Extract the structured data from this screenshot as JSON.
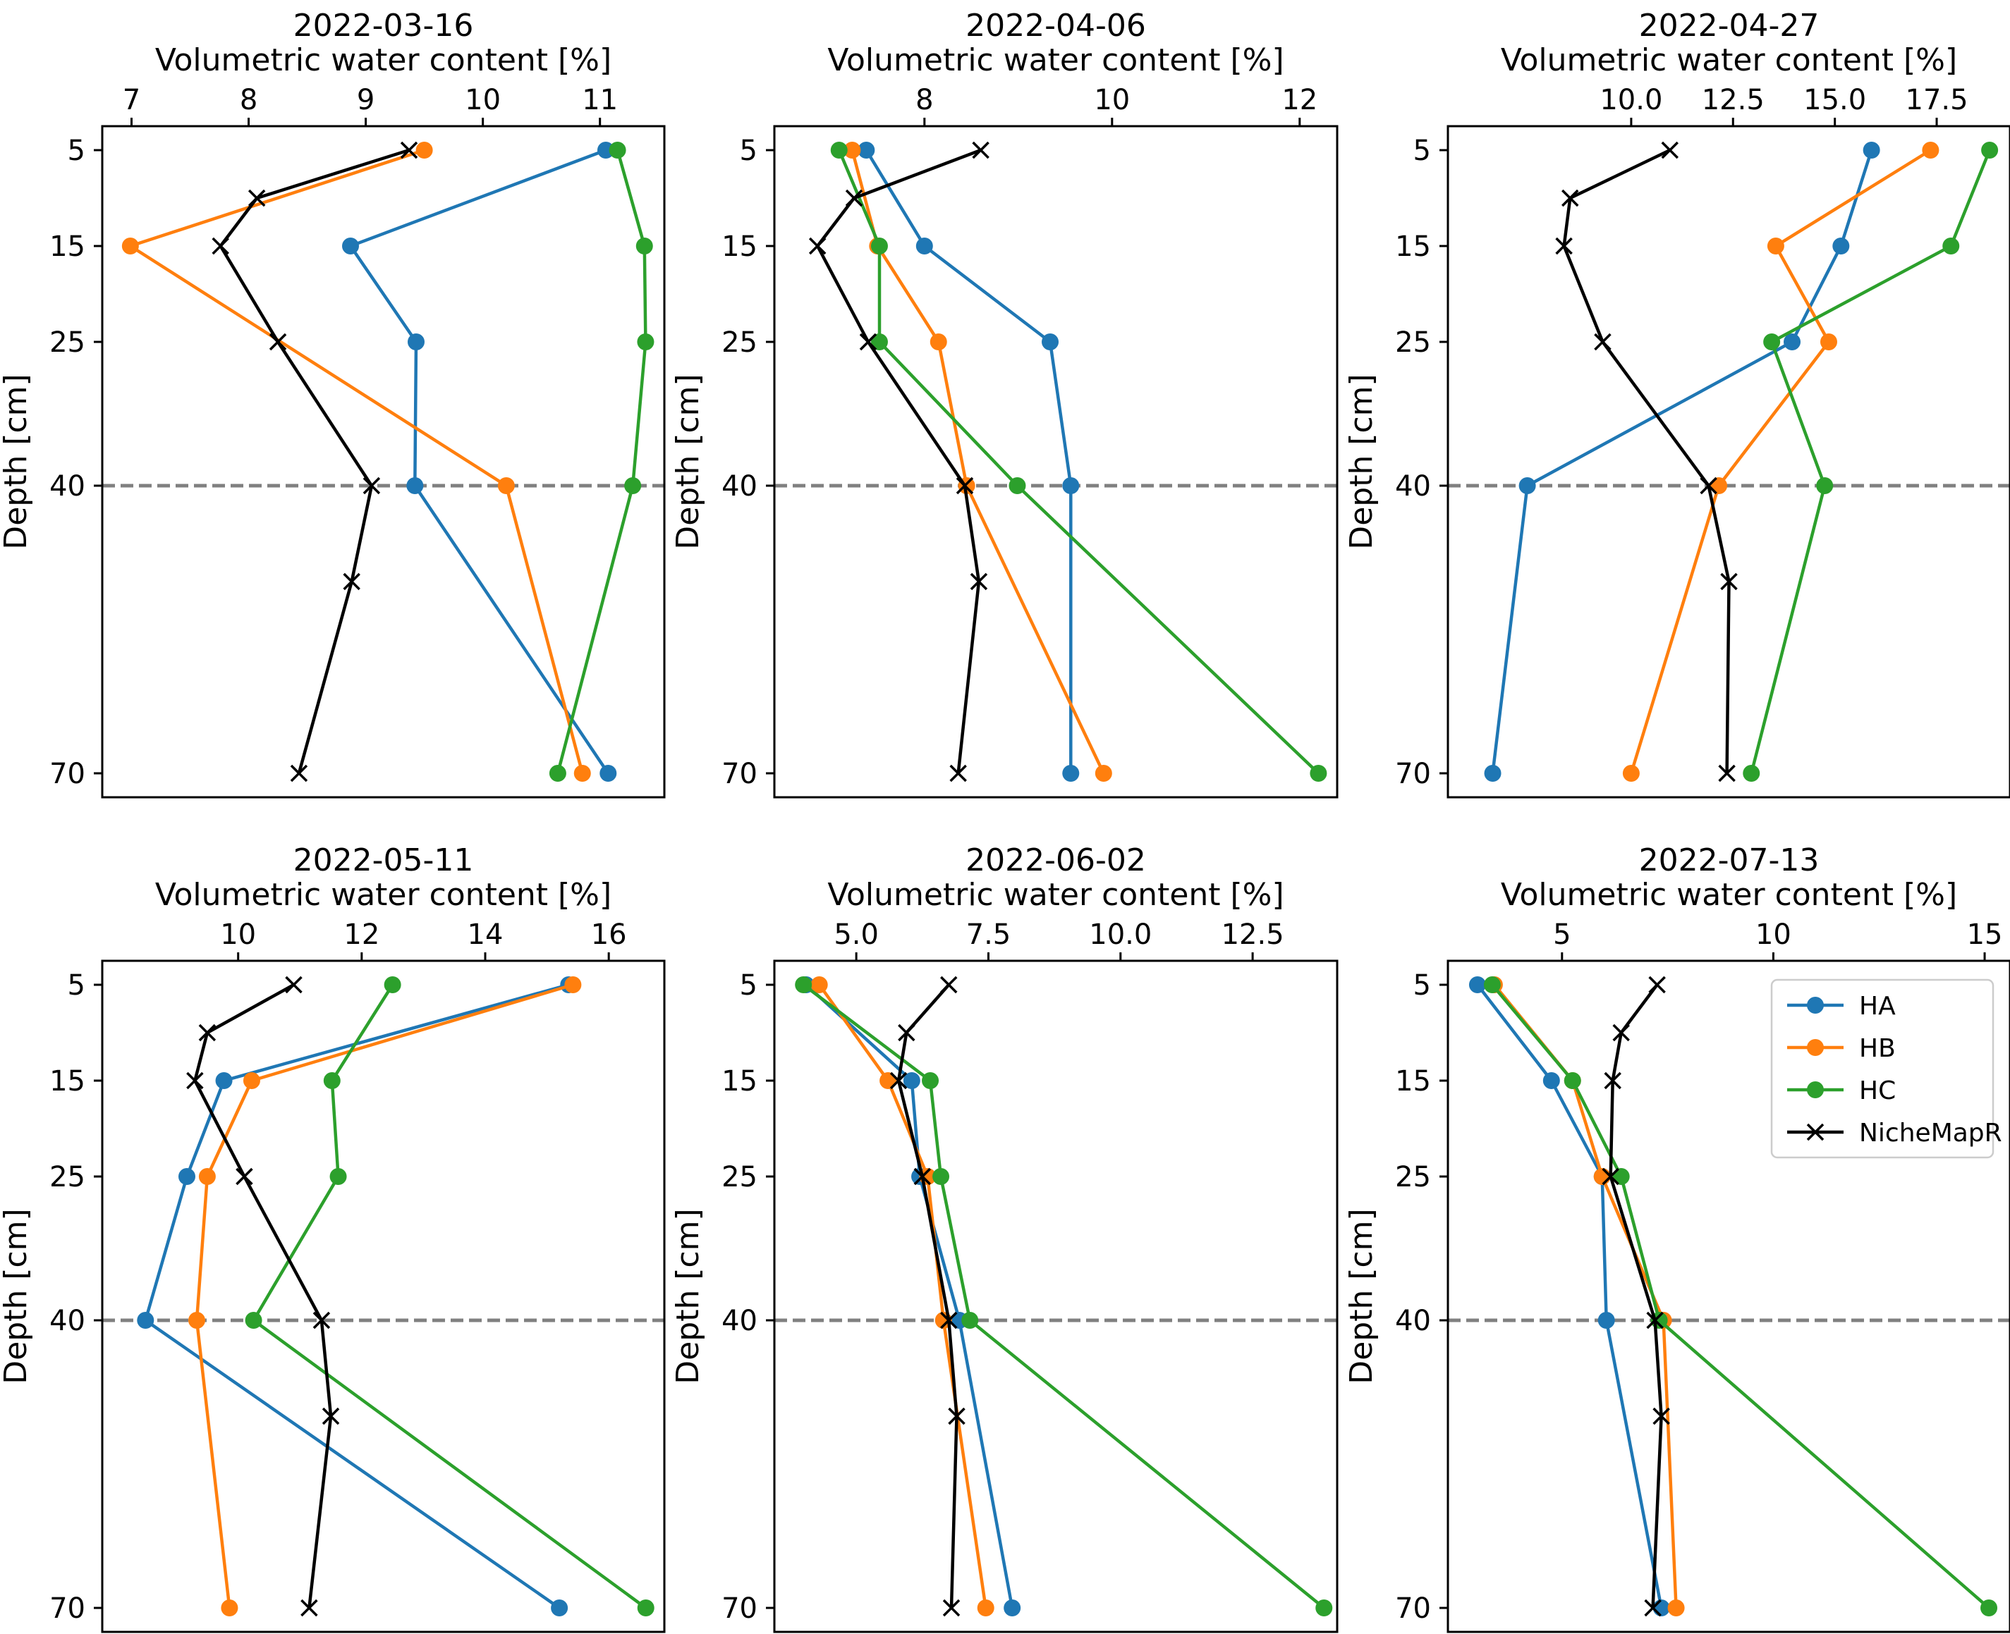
{
  "colors": {
    "HA": "#1f77b4",
    "HB": "#ff7f0e",
    "HC": "#2ca02c",
    "NicheMapR": "#000000",
    "reference_line": "#808080"
  },
  "legend": {
    "placement": "upper-right panel 6",
    "entries": [
      "HA",
      "HB",
      "HC",
      "NicheMapR"
    ]
  },
  "chart_data": [
    {
      "type": "line",
      "title": "2022-03-16",
      "xlabel": "Volumetric water content [%]",
      "ylabel": "Depth [cm]",
      "x_axis_position": "top",
      "y_inverted": true,
      "xlim": [
        6.75,
        11.55
      ],
      "ylim": [
        72.5,
        2.5
      ],
      "xticks": [
        7,
        8,
        9,
        10,
        11
      ],
      "xtick_labels": [
        "7",
        "8",
        "9",
        "10",
        "11"
      ],
      "yticks": [
        5,
        15,
        25,
        40,
        70
      ],
      "reference_line_depth": 40,
      "series": [
        {
          "name": "HA",
          "marker": "circle",
          "depth": [
            5,
            15,
            25,
            40,
            70
          ],
          "values": [
            11.05,
            8.87,
            9.43,
            9.42,
            11.07
          ]
        },
        {
          "name": "HB",
          "marker": "circle",
          "depth": [
            5,
            15,
            40,
            70
          ],
          "values": [
            9.5,
            6.99,
            10.2,
            10.85
          ]
        },
        {
          "name": "HC",
          "marker": "circle",
          "depth": [
            5,
            15,
            25,
            40,
            70
          ],
          "values": [
            11.15,
            11.38,
            11.39,
            11.28,
            10.64
          ]
        },
        {
          "name": "NicheMapR",
          "marker": "x",
          "depth": [
            5,
            10,
            15,
            25,
            40,
            50,
            70
          ],
          "values": [
            9.37,
            8.07,
            7.76,
            8.25,
            9.05,
            8.88,
            8.43
          ]
        }
      ]
    },
    {
      "type": "line",
      "title": "2022-04-06",
      "xlabel": "Volumetric water content [%]",
      "ylabel": "Depth [cm]",
      "x_axis_position": "top",
      "y_inverted": true,
      "xlim": [
        6.4,
        12.4
      ],
      "ylim": [
        72.5,
        2.5
      ],
      "xticks": [
        8,
        10,
        12
      ],
      "xtick_labels": [
        "8",
        "10",
        "12"
      ],
      "yticks": [
        5,
        15,
        25,
        40,
        70
      ],
      "reference_line_depth": 40,
      "series": [
        {
          "name": "HA",
          "marker": "circle",
          "depth": [
            5,
            15,
            25,
            40,
            70
          ],
          "values": [
            7.38,
            8.0,
            9.34,
            9.56,
            9.56
          ]
        },
        {
          "name": "HB",
          "marker": "circle",
          "depth": [
            5,
            15,
            25,
            40,
            70
          ],
          "values": [
            7.23,
            7.5,
            8.15,
            8.45,
            9.91
          ]
        },
        {
          "name": "HC",
          "marker": "circle",
          "depth": [
            5,
            15,
            25,
            40,
            70
          ],
          "values": [
            7.09,
            7.52,
            7.52,
            8.99,
            12.2
          ]
        },
        {
          "name": "NicheMapR",
          "marker": "x",
          "depth": [
            5,
            10,
            15,
            25,
            40,
            50,
            70
          ],
          "values": [
            8.6,
            7.25,
            6.86,
            7.4,
            8.43,
            8.58,
            8.36
          ]
        }
      ]
    },
    {
      "type": "line",
      "title": "2022-04-27",
      "xlabel": "Volumetric water content [%]",
      "ylabel": "Depth [cm]",
      "x_axis_position": "top",
      "y_inverted": true,
      "xlim": [
        5.5,
        19.3
      ],
      "ylim": [
        72.5,
        2.5
      ],
      "xticks": [
        10.0,
        12.5,
        15.0,
        17.5
      ],
      "xtick_labels": [
        "10.0",
        "12.5",
        "15.0",
        "17.5"
      ],
      "yticks": [
        5,
        15,
        25,
        40,
        70
      ],
      "reference_line_depth": 40,
      "series": [
        {
          "name": "HA",
          "marker": "circle",
          "depth": [
            5,
            15,
            25,
            40,
            70
          ],
          "values": [
            15.9,
            15.15,
            13.95,
            7.45,
            6.6
          ]
        },
        {
          "name": "HB",
          "marker": "circle",
          "depth": [
            5,
            15,
            25,
            40,
            70
          ],
          "values": [
            17.35,
            13.55,
            14.85,
            12.15,
            10.0
          ]
        },
        {
          "name": "HC",
          "marker": "circle",
          "depth": [
            5,
            15,
            25,
            40,
            70
          ],
          "values": [
            18.8,
            17.85,
            13.45,
            14.75,
            12.95
          ]
        },
        {
          "name": "NicheMapR",
          "marker": "x",
          "depth": [
            5,
            10,
            15,
            25,
            40,
            50,
            70
          ],
          "values": [
            10.95,
            8.5,
            8.35,
            9.3,
            11.9,
            12.4,
            12.35
          ]
        }
      ]
    },
    {
      "type": "line",
      "title": "2022-05-11",
      "xlabel": "Volumetric water content [%]",
      "ylabel": "Depth [cm]",
      "x_axis_position": "top",
      "y_inverted": true,
      "xlim": [
        7.8,
        16.9
      ],
      "ylim": [
        72.5,
        2.5
      ],
      "xticks": [
        10,
        12,
        14,
        16
      ],
      "xtick_labels": [
        "10",
        "12",
        "14",
        "16"
      ],
      "yticks": [
        5,
        15,
        25,
        40,
        70
      ],
      "reference_line_depth": 40,
      "series": [
        {
          "name": "HA",
          "marker": "circle",
          "depth": [
            5,
            15,
            25,
            40,
            70
          ],
          "values": [
            15.35,
            9.77,
            9.17,
            8.5,
            15.2
          ]
        },
        {
          "name": "HB",
          "marker": "circle",
          "depth": [
            5,
            15,
            25,
            40,
            70
          ],
          "values": [
            15.42,
            10.22,
            9.5,
            9.33,
            9.86
          ]
        },
        {
          "name": "HC",
          "marker": "circle",
          "depth": [
            5,
            15,
            25,
            40,
            70
          ],
          "values": [
            12.5,
            11.52,
            11.62,
            10.25,
            16.6
          ]
        },
        {
          "name": "NicheMapR",
          "marker": "x",
          "depth": [
            5,
            10,
            15,
            25,
            40,
            50,
            70
          ],
          "values": [
            10.9,
            9.5,
            9.3,
            10.1,
            11.35,
            11.5,
            11.15
          ]
        }
      ]
    },
    {
      "type": "line",
      "title": "2022-06-02",
      "xlabel": "Volumetric water content [%]",
      "ylabel": "Depth [cm]",
      "x_axis_position": "top",
      "y_inverted": true,
      "xlim": [
        3.45,
        14.1
      ],
      "ylim": [
        72.5,
        2.5
      ],
      "xticks": [
        5.0,
        7.5,
        10.0,
        12.5
      ],
      "xtick_labels": [
        "5.0",
        "7.5",
        "10.0",
        "12.5"
      ],
      "yticks": [
        5,
        15,
        25,
        40,
        70
      ],
      "reference_line_depth": 40,
      "series": [
        {
          "name": "HA",
          "marker": "circle",
          "depth": [
            5,
            15,
            25,
            40,
            70
          ],
          "values": [
            4.05,
            6.05,
            6.2,
            6.95,
            7.95
          ]
        },
        {
          "name": "HB",
          "marker": "circle",
          "depth": [
            5,
            15,
            25,
            40,
            70
          ],
          "values": [
            4.3,
            5.6,
            6.35,
            6.65,
            7.45
          ]
        },
        {
          "name": "HC",
          "marker": "circle",
          "depth": [
            5,
            15,
            25,
            40,
            70
          ],
          "values": [
            4.0,
            6.4,
            6.6,
            7.15,
            13.85
          ]
        },
        {
          "name": "NicheMapR",
          "marker": "x",
          "depth": [
            5,
            10,
            15,
            25,
            40,
            50,
            70
          ],
          "values": [
            6.75,
            5.95,
            5.8,
            6.25,
            6.75,
            6.9,
            6.8
          ]
        }
      ]
    },
    {
      "type": "line",
      "title": "2022-07-13",
      "xlabel": "Volumetric water content [%]",
      "ylabel": "Depth [cm]",
      "x_axis_position": "top",
      "y_inverted": true,
      "xlim": [
        2.3,
        15.6
      ],
      "ylim": [
        72.5,
        2.5
      ],
      "xticks": [
        5,
        10,
        15
      ],
      "xtick_labels": [
        "5",
        "10",
        "15"
      ],
      "yticks": [
        5,
        15,
        25,
        40,
        70
      ],
      "reference_line_depth": 40,
      "series": [
        {
          "name": "HA",
          "marker": "circle",
          "depth": [
            5,
            15,
            25,
            40,
            70
          ],
          "values": [
            3.0,
            4.75,
            5.95,
            6.05,
            7.35
          ]
        },
        {
          "name": "HB",
          "marker": "circle",
          "depth": [
            5,
            15,
            25,
            40,
            70
          ],
          "values": [
            3.4,
            5.25,
            5.95,
            7.4,
            7.7
          ]
        },
        {
          "name": "HC",
          "marker": "circle",
          "depth": [
            5,
            15,
            25,
            40,
            70
          ],
          "values": [
            3.35,
            5.25,
            6.4,
            7.3,
            15.1
          ]
        },
        {
          "name": "NicheMapR",
          "marker": "x",
          "depth": [
            5,
            10,
            15,
            25,
            40,
            50,
            70
          ],
          "values": [
            7.25,
            6.4,
            6.2,
            6.15,
            7.2,
            7.35,
            7.15
          ]
        }
      ]
    }
  ]
}
